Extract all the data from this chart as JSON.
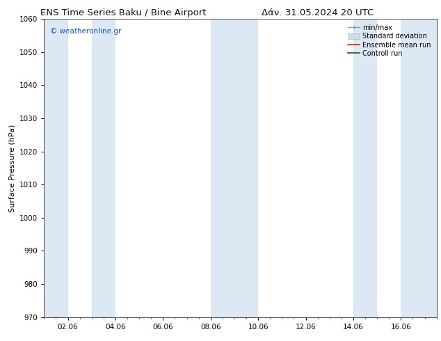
{
  "title_left": "ENS Time Series Baku / Bine Airport",
  "title_right": "Δάν. 31.05.2024 20 UTC",
  "ylabel": "Surface Pressure (hPa)",
  "ylim": [
    970,
    1060
  ],
  "yticks": [
    970,
    980,
    990,
    1000,
    1010,
    1020,
    1030,
    1040,
    1050,
    1060
  ],
  "xtick_labels": [
    "02.06",
    "04.06",
    "06.06",
    "08.06",
    "10.06",
    "12.06",
    "14.06",
    "16.06"
  ],
  "bg_color": "#ffffff",
  "plot_bg_color": "#ffffff",
  "band_color": "#dce9f5",
  "copyright_text": "© weatheronline.gr",
  "copyright_color": "#1155cc",
  "legend_labels": [
    "min/max",
    "Standard deviation",
    "Ensemble mean run",
    "Controll run"
  ],
  "title_fontsize": 9.5,
  "axis_label_fontsize": 8,
  "tick_fontsize": 7.5,
  "legend_fontsize": 7
}
